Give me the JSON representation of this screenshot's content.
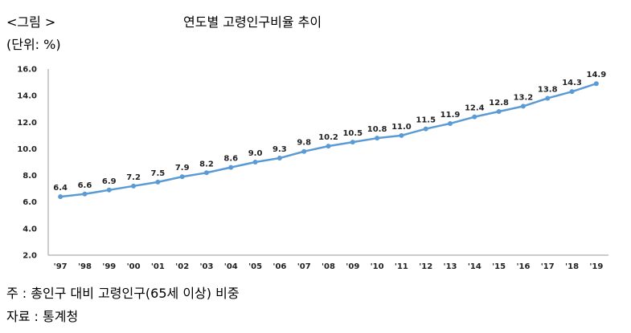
{
  "figure_label": "<그림 >",
  "note": "주 : 총인구 대비 고령인구(65세 이상) 비중",
  "source": "자료 : 통계청",
  "chart_data": {
    "type": "line",
    "title": "연도별 고령인구비율 추이",
    "unit": "(단위: %)",
    "xlabel": "",
    "ylabel": "",
    "categories": [
      "'97",
      "'98",
      "'99",
      "'00",
      "'01",
      "'02",
      "'03",
      "'04",
      "'05",
      "'06",
      "'07",
      "'08",
      "'09",
      "'10",
      "'11",
      "'12",
      "'13",
      "'14",
      "'15",
      "'16",
      "'17",
      "'18",
      "'19"
    ],
    "series": [
      {
        "values": [
          6.4,
          6.6,
          6.9,
          7.2,
          7.5,
          7.9,
          8.2,
          8.6,
          9.0,
          9.3,
          9.8,
          10.2,
          10.5,
          10.8,
          11.0,
          11.5,
          11.9,
          12.4,
          12.8,
          13.2,
          13.8,
          14.3,
          14.9
        ],
        "labels": [
          "6.4",
          "6.6",
          "6.9",
          "7.2",
          "7.5",
          "7.9",
          "8.2",
          "8.6",
          "9.0",
          "9.3",
          "9.8",
          "10.2",
          "10.5",
          "10.8",
          "11.0",
          "11.5",
          "11.9",
          "12.4",
          "12.8",
          "13.2",
          "13.8",
          "14.3",
          "14.9"
        ]
      }
    ],
    "yticks": [
      "2.0",
      "4.0",
      "6.0",
      "8.0",
      "10.0",
      "12.0",
      "14.0",
      "16.0"
    ],
    "ylim": [
      2,
      16
    ],
    "grid": false,
    "legend": "none",
    "line_color": "#5b9bd5"
  }
}
